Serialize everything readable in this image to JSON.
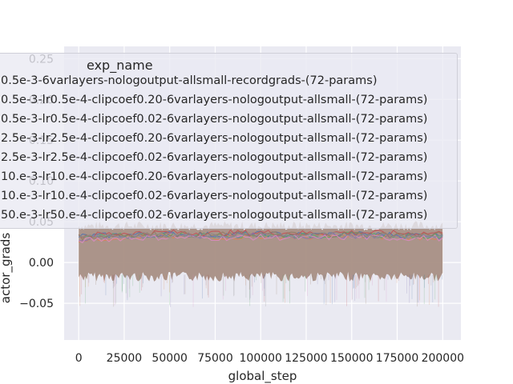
{
  "chart_data": {
    "type": "line",
    "title": "",
    "xlabel": "global_step",
    "ylabel": "actor_grads",
    "xlim": [
      -8000,
      210000
    ],
    "ylim": [
      -0.095,
      0.265
    ],
    "x_ticks": [
      0,
      25000,
      50000,
      75000,
      100000,
      125000,
      150000,
      175000,
      200000
    ],
    "x_tick_labels": [
      "0",
      "25000",
      "50000",
      "75000",
      "100000",
      "125000",
      "150000",
      "175000",
      "200000"
    ],
    "y_ticks": [
      -0.05,
      0.0,
      0.05,
      0.1,
      0.15,
      0.2,
      0.25
    ],
    "y_tick_labels": [
      "−0.05",
      "0.00",
      "0.05",
      "0.10",
      "0.15",
      "0.20",
      "0.25"
    ],
    "grid": true,
    "legend": {
      "title": "exp_name",
      "placement": "upper-left"
    },
    "series": [
      {
        "name": "0.5e-3-6varlayers-nologoutput-allsmall-recordgrads-(72-params)",
        "color": "#4c72b0",
        "x": [
          0,
          25000,
          50000,
          75000,
          100000,
          125000,
          150000,
          175000,
          200000
        ],
        "y": [
          0.032,
          0.034,
          0.035,
          0.034,
          0.035,
          0.034,
          0.035,
          0.034,
          0.034
        ]
      },
      {
        "name": "0.5e-3-lr0.5e-4-clipcoef0.20-6varlayers-nologoutput-allsmall-(72-params)",
        "color": "#dd8452",
        "x": [
          0,
          25000,
          50000,
          75000,
          100000,
          125000,
          150000,
          175000,
          200000
        ],
        "y": [
          0.028,
          0.031,
          0.032,
          0.031,
          0.032,
          0.031,
          0.032,
          0.031,
          0.031
        ]
      },
      {
        "name": "0.5e-3-lr0.5e-4-clipcoef0.02-6varlayers-nologoutput-allsmall-(72-params)",
        "color": "#55a868",
        "x": [
          0,
          25000,
          50000,
          75000,
          100000,
          125000,
          150000,
          175000,
          200000
        ],
        "y": [
          0.03,
          0.033,
          0.034,
          0.033,
          0.034,
          0.033,
          0.034,
          0.033,
          0.033
        ]
      },
      {
        "name": "2.5e-3-lr2.5e-4-clipcoef0.20-6varlayers-nologoutput-allsmall-(72-params)",
        "color": "#c44e52",
        "x": [
          0,
          25000,
          50000,
          75000,
          100000,
          125000,
          150000,
          175000,
          200000
        ],
        "y": [
          0.033,
          0.036,
          0.037,
          0.036,
          0.037,
          0.036,
          0.037,
          0.036,
          0.036
        ]
      },
      {
        "name": "2.5e-3-lr2.5e-4-clipcoef0.02-6varlayers-nologoutput-allsmall-(72-params)",
        "color": "#8172b3",
        "x": [
          0,
          25000,
          50000,
          75000,
          100000,
          125000,
          150000,
          175000,
          200000
        ],
        "y": [
          0.029,
          0.032,
          0.033,
          0.032,
          0.033,
          0.032,
          0.033,
          0.032,
          0.032
        ]
      },
      {
        "name": "10.e-3-lr10.e-4-clipcoef0.20-6varlayers-nologoutput-allsmall-(72-params)",
        "color": "#937860",
        "x": [
          0,
          25000,
          50000,
          75000,
          100000,
          125000,
          150000,
          175000,
          200000
        ],
        "y": [
          0.031,
          0.034,
          0.035,
          0.034,
          0.035,
          0.034,
          0.035,
          0.034,
          0.034
        ]
      },
      {
        "name": "10.e-3-lr10.e-4-clipcoef0.02-6varlayers-nologoutput-allsmall-(72-params)",
        "color": "#da8bc3",
        "x": [
          0,
          25000,
          50000,
          75000,
          100000,
          125000,
          150000,
          175000,
          200000
        ],
        "y": [
          0.027,
          0.03,
          0.031,
          0.03,
          0.031,
          0.03,
          0.031,
          0.03,
          0.03
        ]
      },
      {
        "name": "50.e-3-lr50.e-4-clipcoef0.02-6varlayers-nologoutput-allsmall-(72-params)",
        "color": "#8c8c8c",
        "x": [
          0,
          25000,
          50000,
          75000,
          100000,
          125000,
          150000,
          175000,
          200000
        ],
        "y": [
          0.03,
          0.033,
          0.034,
          0.033,
          0.034,
          0.033,
          0.034,
          0.033,
          0.033
        ]
      }
    ],
    "band": {
      "color": "#a88f84",
      "lower": -0.015,
      "upper": 0.045
    }
  }
}
